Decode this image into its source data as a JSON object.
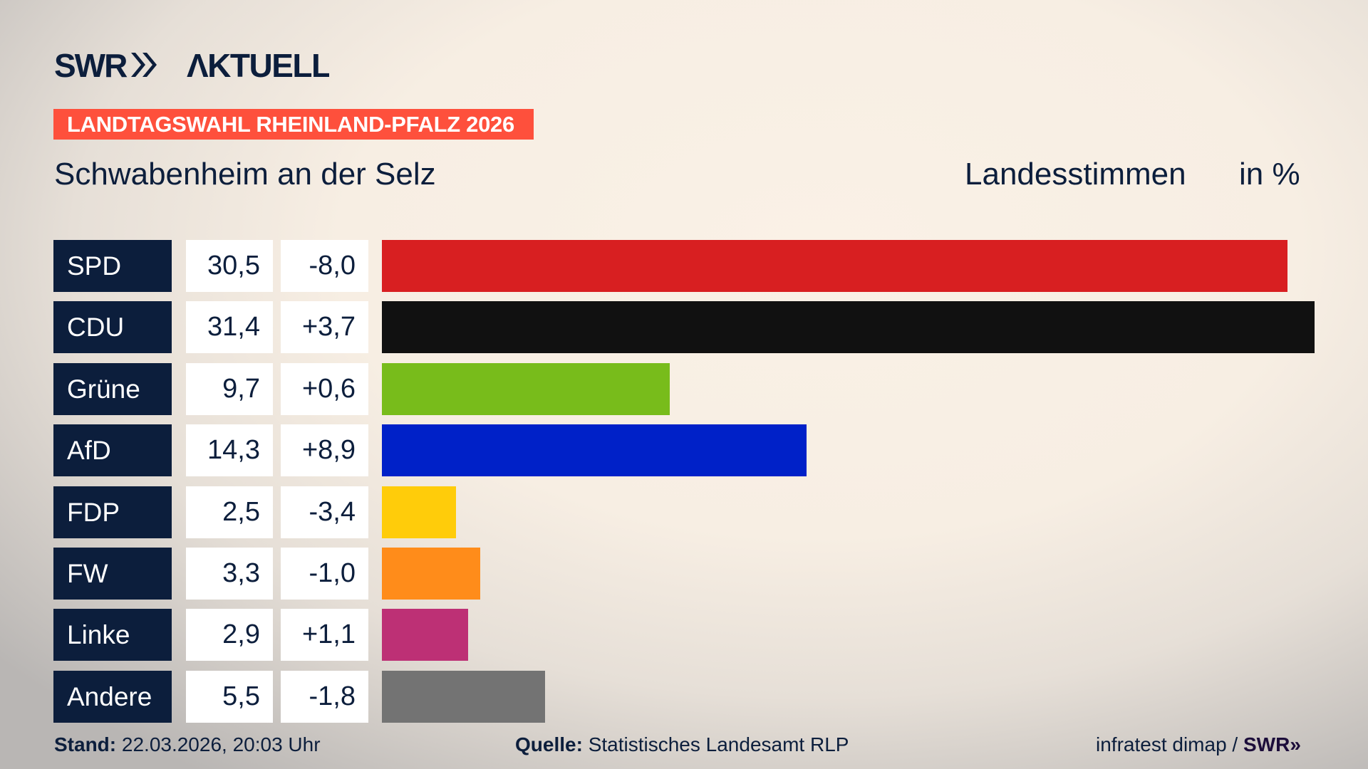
{
  "header": {
    "logo_text": "SWR AKTUELL",
    "banner": "LANDTAGSWAHL RHEINLAND-PFALZ 2026",
    "place": "Schwabenheim an der Selz",
    "vote_type": "Landesstimmen",
    "unit": "in %"
  },
  "colors": {
    "banner": "#fe503c",
    "label_bg": "#0c1e3c"
  },
  "chart_data": {
    "type": "bar",
    "orientation": "horizontal",
    "categories": [
      "SPD",
      "CDU",
      "Grüne",
      "AfD",
      "FDP",
      "FW",
      "Linke",
      "Andere"
    ],
    "values": [
      30.5,
      31.4,
      9.7,
      14.3,
      2.5,
      3.3,
      2.9,
      5.5
    ],
    "value_labels": [
      "30,5",
      "31,4",
      "9,7",
      "14,3",
      "2,5",
      "3,3",
      "2,9",
      "5,5"
    ],
    "changes": [
      -8.0,
      3.7,
      0.6,
      8.9,
      -3.4,
      -1.0,
      1.1,
      -1.8
    ],
    "change_labels": [
      "-8,0",
      "+3,7",
      "+0,6",
      "+8,9",
      "-3,4",
      "-1,0",
      "+1,1",
      "-1,8"
    ],
    "colors": [
      "#d81f21",
      "#111111",
      "#78bc1b",
      "#0021c8",
      "#ffcc0a",
      "#ff8c1a",
      "#bd3075",
      "#737373"
    ],
    "xlim": [
      0,
      31.4
    ]
  },
  "footer": {
    "stand_label": "Stand:",
    "stand_value": "22.03.2026, 20:03 Uhr",
    "source_label": "Quelle:",
    "source_value": "Statistisches Landesamt RLP",
    "credit": "infratest dimap /",
    "credit_logo": "SWR"
  }
}
